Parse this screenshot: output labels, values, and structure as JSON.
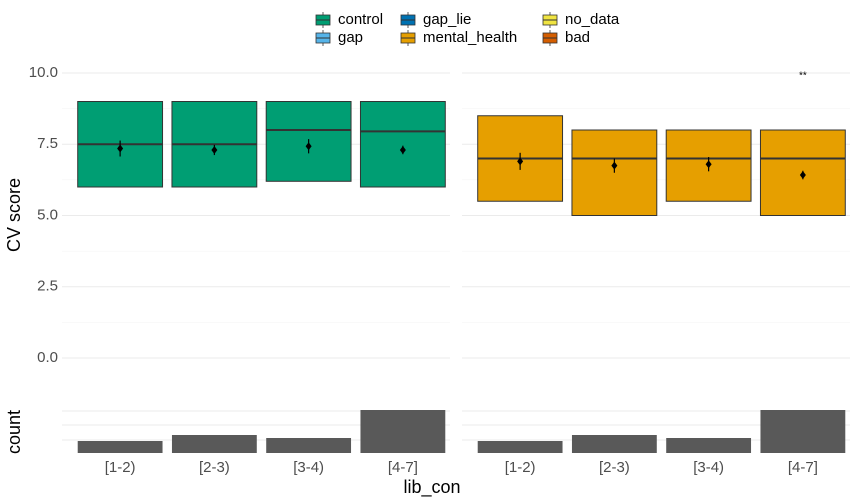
{
  "chart_data": {
    "type": "box",
    "ylabel": "CV score",
    "xlabel": "lib_con",
    "count_label": "count",
    "categories": [
      "[1-2)",
      "[2-3)",
      "[3-4)",
      "[4-7]"
    ],
    "ylim": [
      -0.4,
      10.5
    ],
    "yticks": [
      {
        "value": 0,
        "label": "0.0"
      },
      {
        "value": 2.5,
        "label": "2.5"
      },
      {
        "value": 5,
        "label": "5.0"
      },
      {
        "value": 7.5,
        "label": "7.5"
      },
      {
        "value": 10,
        "label": "10.0"
      }
    ],
    "count_ylim": [
      0,
      48
    ],
    "grid": true,
    "legend": "top",
    "series": [
      {
        "name": "control",
        "color": "#009E73",
        "q1": [
          6,
          6,
          6.2,
          6
        ],
        "median": [
          7.5,
          7.5,
          8,
          7.95
        ],
        "q3": [
          9,
          9,
          9,
          9
        ],
        "mean": [
          7.35,
          7.3,
          7.43,
          7.3
        ],
        "error": [
          0.28,
          0.18,
          0.25,
          0.15
        ],
        "counts": [
          12,
          18,
          15,
          43
        ]
      },
      {
        "name": "gap",
        "color": "#56B4E9"
      },
      {
        "name": "gap_lie",
        "color": "#0072B2"
      },
      {
        "name": "mental_health",
        "color": "#E69F00",
        "q1": [
          5.5,
          5,
          5.5,
          5
        ],
        "median": [
          7,
          7,
          7,
          7
        ],
        "q3": [
          8.5,
          8,
          8,
          8
        ],
        "mean": [
          6.9,
          6.75,
          6.8,
          6.42
        ],
        "error": [
          0.3,
          0.25,
          0.25,
          0.15
        ],
        "counts": [
          12,
          18,
          15,
          43
        ],
        "annotation": {
          "text": "**",
          "category": 3,
          "y": 9.9
        }
      },
      {
        "name": "no_data",
        "color": "#F0E442"
      },
      {
        "name": "bad",
        "color": "#D55E00"
      }
    ]
  }
}
